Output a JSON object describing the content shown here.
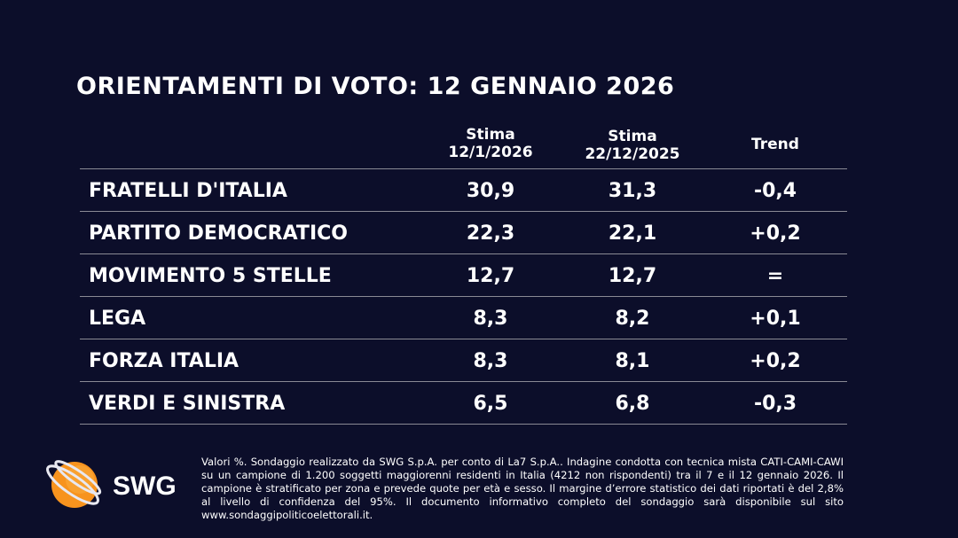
{
  "title": "ORIENTAMENTI DI VOTO: 12 GENNAIO 2026",
  "chart_data": {
    "type": "table",
    "columns": [
      {
        "line1": "Stima",
        "line2": "12/1/2026"
      },
      {
        "line1": "Stima",
        "line2": "22/12/2025"
      },
      {
        "line1": "Trend",
        "line2": ""
      }
    ],
    "rows": [
      {
        "party": "FRATELLI D'ITALIA",
        "current": "30,9",
        "previous": "31,3",
        "trend": "-0,4"
      },
      {
        "party": "PARTITO DEMOCRATICO",
        "current": "22,3",
        "previous": "22,1",
        "trend": "+0,2"
      },
      {
        "party": "MOVIMENTO 5 STELLE",
        "current": "12,7",
        "previous": "12,7",
        "trend": "="
      },
      {
        "party": "LEGA",
        "current": "8,3",
        "previous": "8,2",
        "trend": "+0,1"
      },
      {
        "party": "FORZA ITALIA",
        "current": "8,3",
        "previous": "8,1",
        "trend": "+0,2"
      },
      {
        "party": "VERDI E SINISTRA",
        "current": "6,5",
        "previous": "6,8",
        "trend": "-0,3"
      }
    ]
  },
  "footer": {
    "logo_text": "SWG",
    "note": "Valori %. Sondaggio realizzato da SWG S.p.A. per conto di La7 S.p.A.. Indagine condotta con tecnica mista CATI-CAMI-CAWI su un campione di 1.200 soggetti maggiorenni residenti in Italia (4212 non rispondenti) tra il 7 e il 12 gennaio 2026. Il campione è stratificato per zona e prevede quote per età e sesso. Il margine d’errore statistico dei dati riportati è del 2,8% al livello di confidenza del 95%. Il documento informativo completo del sondaggio sarà disponibile sul sito www.sondaggipoliticoelettorali.it."
  },
  "colors": {
    "background": "#0c0e2a",
    "text": "#ffffff",
    "logo_orange": "#f7931e",
    "divider": "#8a8a94"
  }
}
